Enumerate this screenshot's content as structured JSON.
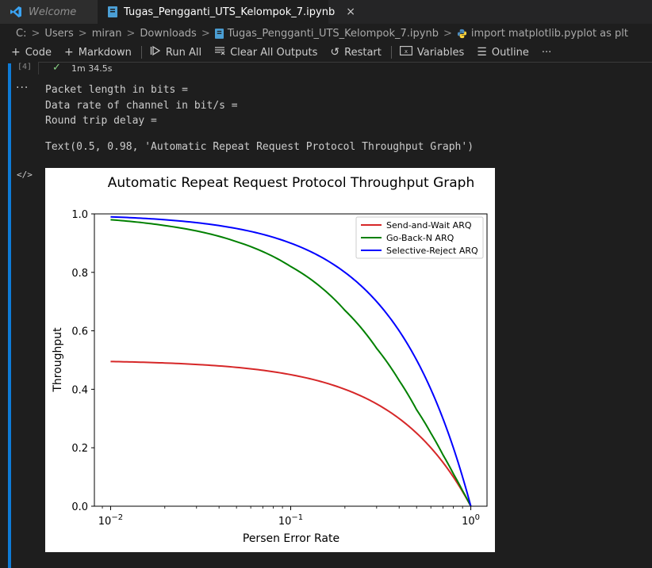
{
  "tabs": [
    {
      "label": "Welcome",
      "active": false,
      "icon": "vscode-logo-icon"
    },
    {
      "label": "Tugas_Pengganti_UTS_Kelompok_7.ipynb",
      "active": true,
      "icon": "notebook-file-icon",
      "close": "×"
    }
  ],
  "breadcrumb": {
    "items": [
      "C:",
      "Users",
      "miran",
      "Downloads",
      "Tugas_Pengganti_UTS_Kelompok_7.ipynb",
      "import matplotlib.pyplot as plt"
    ],
    "separator": ">"
  },
  "toolbar": {
    "code": "Code",
    "markdown": "Markdown",
    "run_all": "Run All",
    "clear_all": "Clear All Outputs",
    "restart": "Restart",
    "variables": "Variables",
    "outline": "Outline",
    "more": "···"
  },
  "cell": {
    "execution_count": "[4]",
    "exec_time": "1m 34.5s",
    "stdout_lines": [
      "Packet length in bits =",
      "Data rate of channel in bit/s =",
      "Round trip delay ="
    ],
    "text_output": "Text(0.5, 0.98, 'Automatic Repeat Request Protocol Throughput Graph')",
    "output_menu": "···",
    "output_code_icon": "</>"
  },
  "chart_data": {
    "type": "line",
    "title": "Automatic Repeat Request Protocol Throughput Graph",
    "xlabel": "Persen Error Rate",
    "ylabel": "Throughput",
    "xscale": "log",
    "xlim": [
      0.01,
      1.0
    ],
    "ylim": [
      0.0,
      1.0
    ],
    "xticks": [
      "10−2",
      "10−1",
      "100"
    ],
    "yticks": [
      "0.0",
      "0.2",
      "0.4",
      "0.6",
      "0.8",
      "1.0"
    ],
    "legend_position": "top-right",
    "grid": false,
    "x": [
      0.01,
      0.02,
      0.05,
      0.1,
      0.2,
      0.3,
      0.4,
      0.5,
      0.6,
      0.7,
      0.8,
      0.9,
      1.0
    ],
    "series": [
      {
        "name": "Send-and-Wait ARQ",
        "color": "#d62728",
        "values": [
          0.495,
          0.49,
          0.475,
          0.45,
          0.4,
          0.35,
          0.3,
          0.25,
          0.2,
          0.15,
          0.1,
          0.05,
          0.0
        ]
      },
      {
        "name": "Go-Back-N ARQ",
        "color": "#008000",
        "values": [
          0.98,
          0.96,
          0.905,
          0.82,
          0.67,
          0.54,
          0.43,
          0.33,
          0.25,
          0.176,
          0.111,
          0.053,
          0.0
        ]
      },
      {
        "name": "Selective-Reject ARQ",
        "color": "#0000ff",
        "values": [
          0.99,
          0.98,
          0.95,
          0.9,
          0.8,
          0.7,
          0.6,
          0.5,
          0.4,
          0.3,
          0.2,
          0.1,
          0.0
        ]
      }
    ]
  }
}
